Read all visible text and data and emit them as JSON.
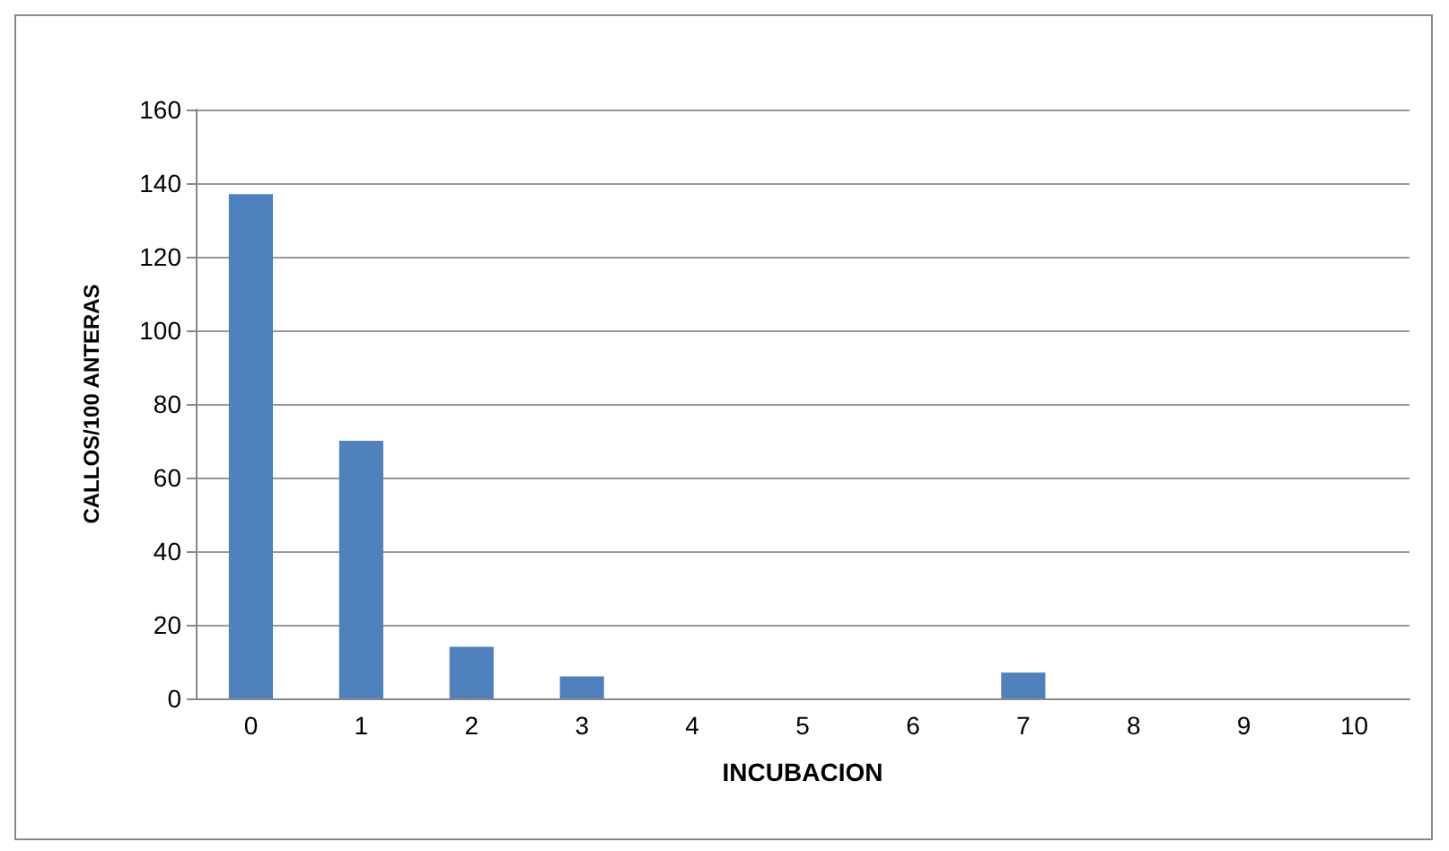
{
  "chart_data": {
    "type": "bar",
    "xlabel": "INCUBACION",
    "ylabel": "CALLOS/100 ANTERAS",
    "categories": [
      "0",
      "1",
      "2",
      "3",
      "4",
      "5",
      "6",
      "7",
      "8",
      "9",
      "10"
    ],
    "values": [
      137,
      70,
      14,
      6,
      0,
      0,
      0,
      7,
      0,
      0,
      0
    ],
    "color": "#4f81bd",
    "ylim": [
      0,
      160
    ],
    "yticks": [
      0,
      20,
      40,
      60,
      80,
      100,
      120,
      140,
      160
    ],
    "grid": "y"
  }
}
